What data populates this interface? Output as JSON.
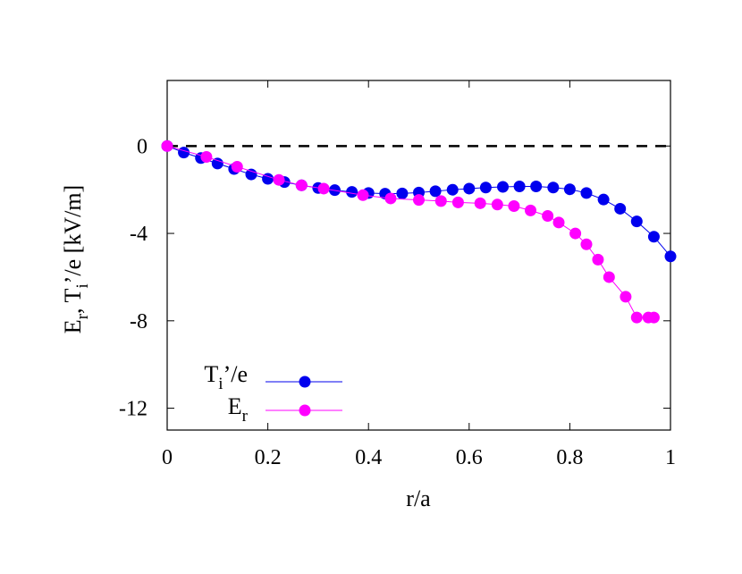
{
  "chart_data": {
    "type": "line",
    "xlabel": "r/a",
    "ylabel_parts": [
      "E",
      "r",
      ", T",
      "i",
      "’/e [kV/m]"
    ],
    "xlim": [
      0,
      1
    ],
    "ylim": [
      -13,
      3
    ],
    "x_ticks": [
      0,
      0.2,
      0.4,
      0.6,
      0.8,
      1
    ],
    "x_tick_labels": [
      "0",
      "0.2",
      "0.4",
      "0.6",
      "0.8",
      "1"
    ],
    "y_ticks": [
      0,
      -4,
      -8,
      -12
    ],
    "y_tick_labels": [
      "0",
      "-4",
      "-8",
      "-12"
    ],
    "grid": false,
    "legend_position": "bottom-left",
    "zero_line": {
      "y": 0,
      "style": "dashed",
      "color": "#000000"
    },
    "series": [
      {
        "name_parts": [
          "T",
          "i",
          "’/e"
        ],
        "color": "#0000ee",
        "x": [
          0.0,
          0.033,
          0.067,
          0.1,
          0.133,
          0.167,
          0.2,
          0.233,
          0.267,
          0.3,
          0.333,
          0.367,
          0.4,
          0.433,
          0.467,
          0.5,
          0.533,
          0.567,
          0.6,
          0.633,
          0.667,
          0.7,
          0.733,
          0.767,
          0.8,
          0.833,
          0.867,
          0.9,
          0.933,
          0.967,
          1.0
        ],
        "y": [
          0.0,
          -0.3,
          -0.55,
          -0.8,
          -1.05,
          -1.3,
          -1.5,
          -1.65,
          -1.8,
          -1.92,
          -2.02,
          -2.1,
          -2.15,
          -2.18,
          -2.17,
          -2.13,
          -2.07,
          -2.0,
          -1.95,
          -1.9,
          -1.87,
          -1.85,
          -1.85,
          -1.9,
          -1.98,
          -2.15,
          -2.45,
          -2.87,
          -3.45,
          -4.15,
          -5.05
        ]
      },
      {
        "name_parts": [
          "E",
          "r"
        ],
        "color": "#ff00ff",
        "x": [
          0.0,
          0.078,
          0.139,
          0.222,
          0.267,
          0.311,
          0.389,
          0.444,
          0.5,
          0.544,
          0.578,
          0.622,
          0.656,
          0.689,
          0.722,
          0.756,
          0.778,
          0.811,
          0.833,
          0.856,
          0.878,
          0.911,
          0.933,
          0.956,
          0.967
        ],
        "y": [
          0.0,
          -0.5,
          -0.95,
          -1.55,
          -1.8,
          -1.95,
          -2.25,
          -2.4,
          -2.47,
          -2.52,
          -2.58,
          -2.62,
          -2.68,
          -2.75,
          -2.95,
          -3.2,
          -3.5,
          -4.0,
          -4.5,
          -5.2,
          -6.0,
          -6.9,
          -7.85,
          -7.85,
          -7.85
        ]
      }
    ]
  }
}
